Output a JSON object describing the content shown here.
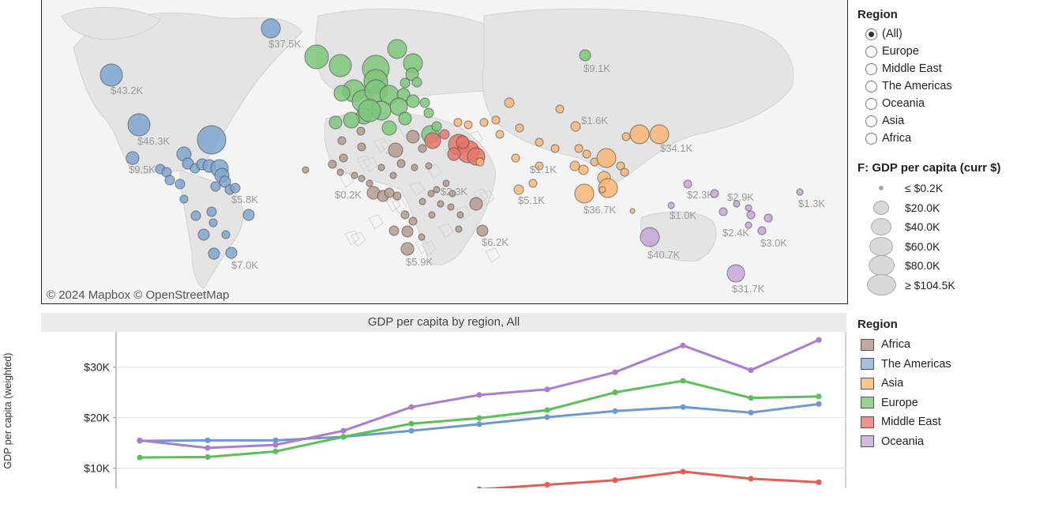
{
  "map": {
    "attribution": "© 2024 Mapbox © OpenStreetMap",
    "labels": [
      "$37.5K",
      "$43.2K",
      "$46.3K",
      "$9.5K",
      "$5.8K",
      "$7.0K",
      "$9.1K",
      "$1.6K",
      "$34.1K",
      "$1.1K",
      "$0.2K",
      "$2.3K",
      "$5.1K",
      "$36.7K",
      "$2.3K",
      "$2.9K",
      "$1.3K",
      "$1.0K",
      "$6.2K",
      "$2.4K",
      "$3.0K",
      "$40.7K",
      "$5.9K",
      "$31.7K"
    ],
    "region_colors": {
      "africa": "#b39b8e",
      "americas": "#7ea6d0",
      "asia": "#f9b676",
      "europe": "#7ec77a",
      "middle_east": "#e8746a",
      "oceania": "#c7a5d9"
    }
  },
  "region_filter": {
    "title": "Region",
    "options": [
      "(All)",
      "Europe",
      "Middle East",
      "The Americas",
      "Oceania",
      "Asia",
      "Africa"
    ],
    "selected": "(All)"
  },
  "size_legend": {
    "title": "F: GDP per capita (curr $)",
    "items": [
      "≤ $0.2K",
      "$20.0K",
      "$40.0K",
      "$60.0K",
      "$80.0K",
      "≥ $104.5K"
    ]
  },
  "color_legend": {
    "title": "Region",
    "items": [
      {
        "label": "Africa",
        "color": "#c0a9a0"
      },
      {
        "label": "The Americas",
        "color": "#a3c1de"
      },
      {
        "label": "Asia",
        "color": "#fbc58c"
      },
      {
        "label": "Europe",
        "color": "#97d58e"
      },
      {
        "label": "Middle East",
        "color": "#f0938a"
      },
      {
        "label": "Oceania",
        "color": "#d3b8e1"
      }
    ]
  },
  "chart_data": {
    "type": "line",
    "title": "GDP per capita by region, All",
    "ylabel": "GDP per capita (weighted)",
    "xlabel": "",
    "yticks": [
      "$10K",
      "$20K",
      "$30K"
    ],
    "ylim": [
      6000,
      37000
    ],
    "x_count": 11,
    "series": [
      {
        "name": "The Americas",
        "color": "#6c9ad0",
        "values": [
          15400,
          15500,
          15500,
          16200,
          17400,
          18700,
          20100,
          21300,
          22100,
          21000,
          22700
        ]
      },
      {
        "name": "Europe",
        "color": "#5cbf5a",
        "values": [
          12100,
          12200,
          13300,
          16200,
          18800,
          19900,
          21500,
          25000,
          27300,
          23900,
          24200
        ]
      },
      {
        "name": "Oceania",
        "color": "#a97dd0",
        "values": [
          15500,
          14000,
          14600,
          17400,
          22100,
          24500,
          25600,
          29000,
          34300,
          29400,
          35400
        ]
      },
      {
        "name": "Middle East",
        "color": "#e45d55",
        "values": [
          null,
          null,
          null,
          null,
          null,
          5800,
          6700,
          7600,
          9300,
          7900,
          7200
        ]
      }
    ]
  }
}
